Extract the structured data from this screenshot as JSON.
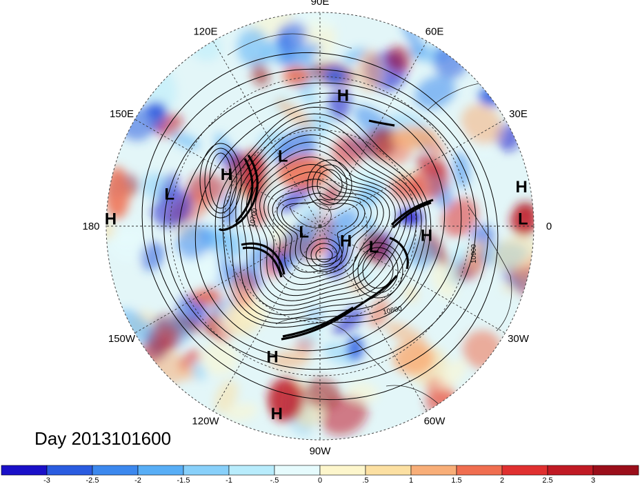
{
  "map": {
    "projection": "north-polar-stereographic",
    "longitude_labels": [
      {
        "text": "90E",
        "lon": 90
      },
      {
        "text": "60E",
        "lon": 60
      },
      {
        "text": "30E",
        "lon": 30
      },
      {
        "text": "0",
        "lon": 0
      },
      {
        "text": "30W",
        "lon": -30
      },
      {
        "text": "60W",
        "lon": -60
      },
      {
        "text": "90W",
        "lon": -90
      },
      {
        "text": "120W",
        "lon": -120
      },
      {
        "text": "150W",
        "lon": -150
      },
      {
        "text": "180",
        "lon": 180
      },
      {
        "text": "150E",
        "lon": 150
      },
      {
        "text": "120E",
        "lon": 120
      }
    ],
    "pressure_centers": [
      {
        "type": "H",
        "lon": 80,
        "colat": 0.62
      },
      {
        "type": "L",
        "lon": 168,
        "colat": 0.72
      },
      {
        "type": "H",
        "lon": 151,
        "colat": 0.5
      },
      {
        "type": "L",
        "lon": 118,
        "colat": 0.37
      },
      {
        "type": "H",
        "lon": 11,
        "colat": 0.96
      },
      {
        "type": "L",
        "lon": 2,
        "colat": 0.95
      },
      {
        "type": "H",
        "lon": -5,
        "colat": 0.5
      },
      {
        "type": "L",
        "lon": -160,
        "colat": 0.08
      },
      {
        "type": "H",
        "lon": -30,
        "colat": 0.14
      },
      {
        "type": "L",
        "lon": -21,
        "colat": 0.27
      },
      {
        "type": "H",
        "lon": -110,
        "colat": 0.65
      },
      {
        "type": "H",
        "lon": -103,
        "colat": 0.9
      },
      {
        "type": "H",
        "lon": 178,
        "colat": 0.98
      }
    ],
    "contour_labels": [
      "10900",
      "10800",
      "10700"
    ]
  },
  "title": "Day 2013101600",
  "colorbar": {
    "tick_labels": [
      "-3",
      "-2.5",
      "-2",
      "-1.5",
      "-1",
      "-.5",
      "0",
      ".5",
      "1",
      "1.5",
      "2",
      "2.5",
      "3"
    ],
    "colors": [
      "#1a10c8",
      "#2a5ce0",
      "#3c88ee",
      "#58aef6",
      "#88d0fa",
      "#b8ecfc",
      "#e6fbfd",
      "#fdf6cc",
      "#fce0a2",
      "#f8ae78",
      "#f06e50",
      "#e03030",
      "#c01a24",
      "#9a0e1a"
    ]
  }
}
